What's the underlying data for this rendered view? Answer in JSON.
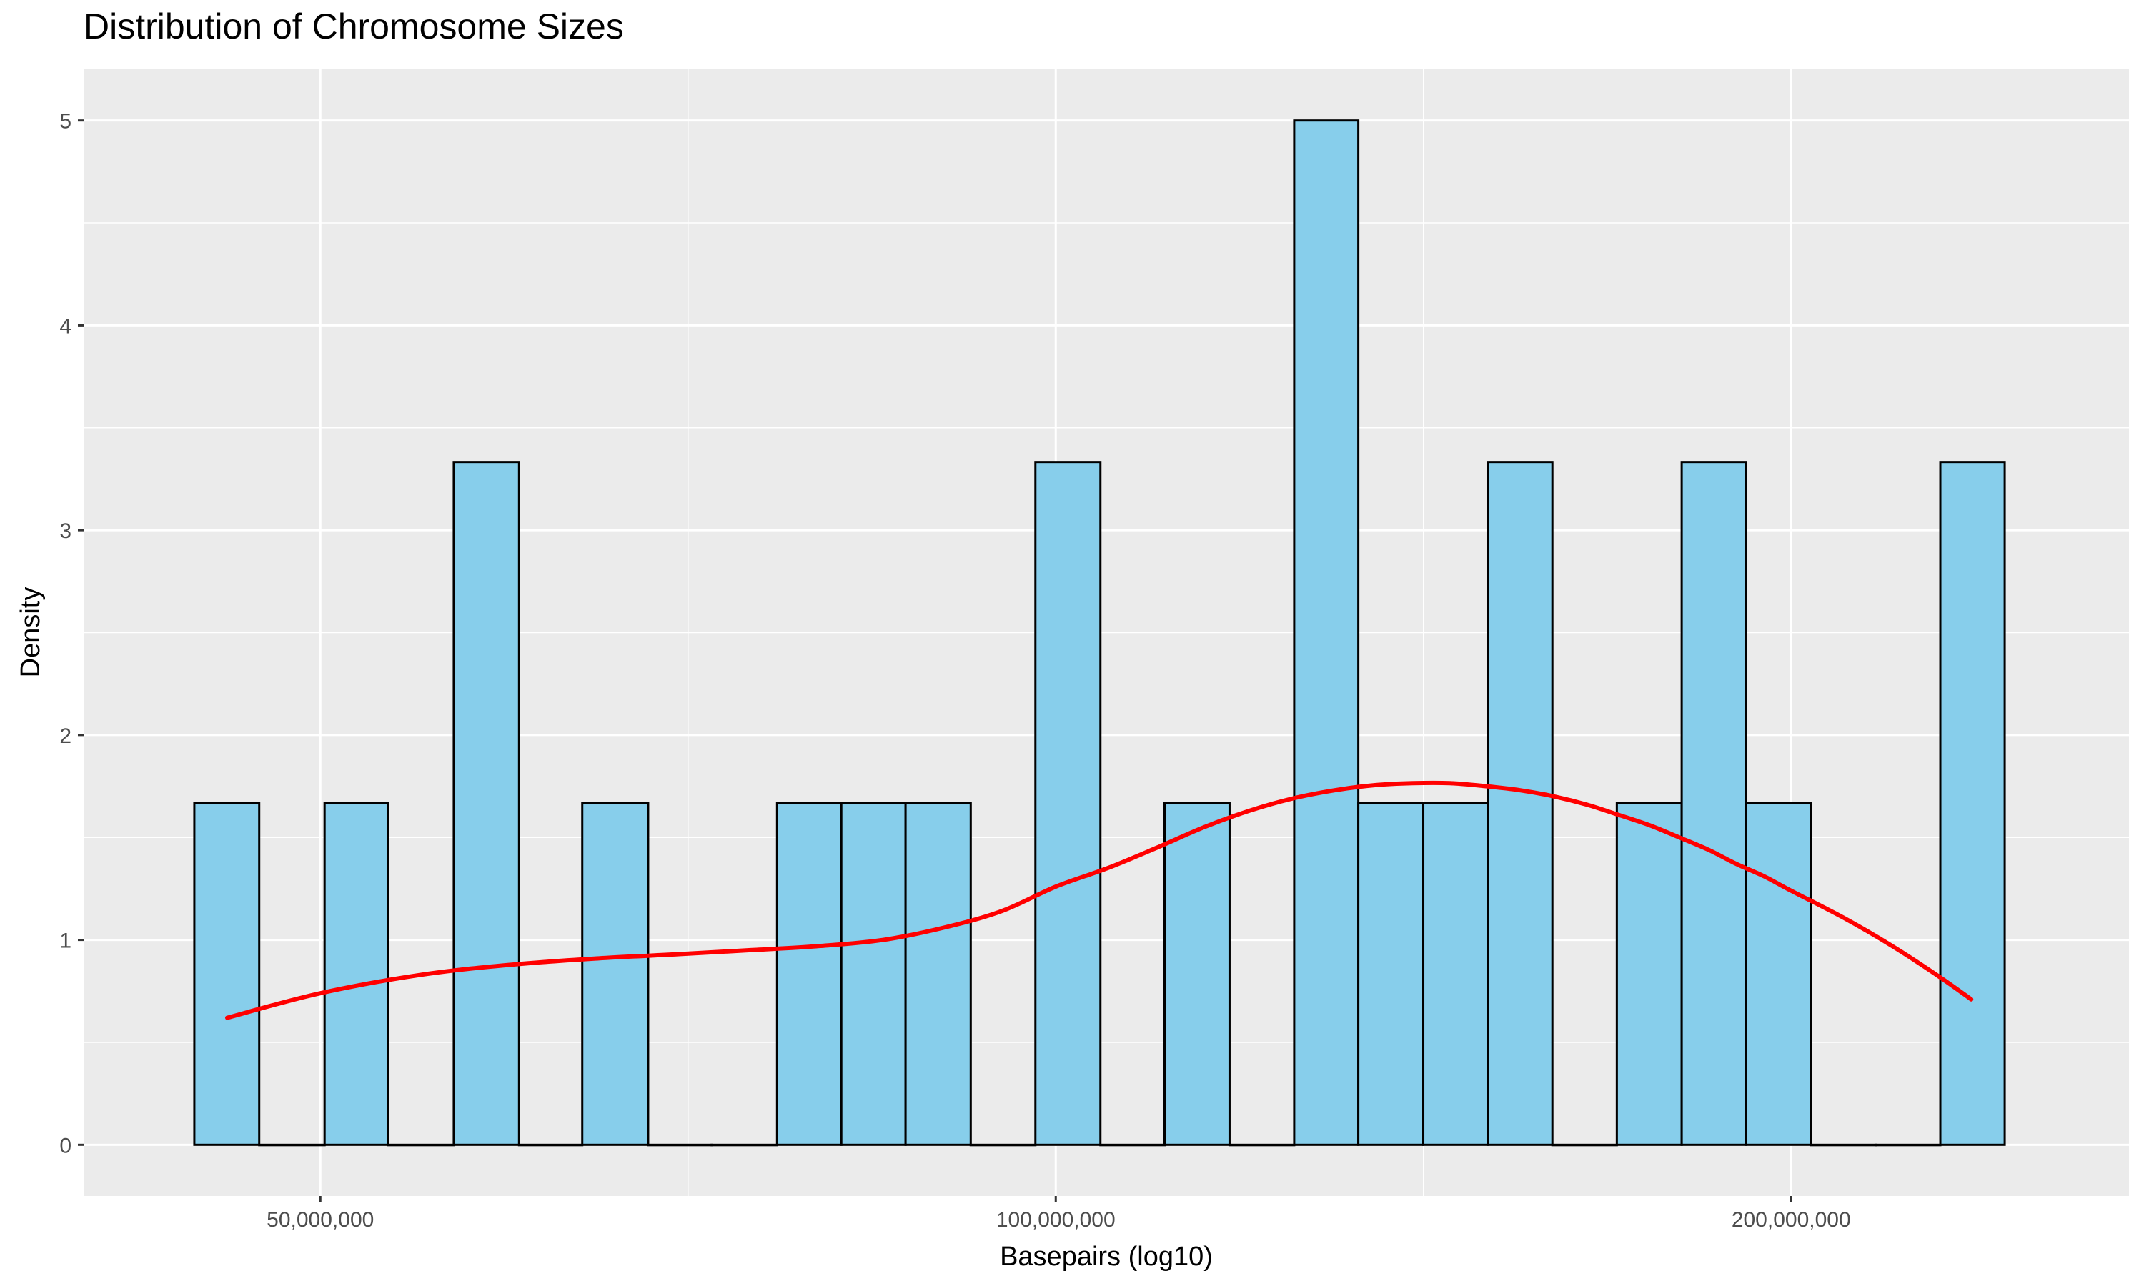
{
  "chart_data": {
    "type": "bar",
    "title": "Distribution of Chromosome Sizes",
    "xlabel": "Basepairs (log10)",
    "ylabel": "Density",
    "x_scale": "log10",
    "xlim": [
      40000000,
      275000000
    ],
    "ylim": [
      -0.25,
      5.25
    ],
    "x_ticks": [
      {
        "value": 50000000,
        "label": "50,000,000"
      },
      {
        "value": 100000000,
        "label": "100,000,000"
      },
      {
        "value": 200000000,
        "label": "200,000,000"
      }
    ],
    "y_ticks": [
      {
        "value": 0,
        "label": "0"
      },
      {
        "value": 1,
        "label": "1"
      },
      {
        "value": 2,
        "label": "2"
      },
      {
        "value": 3,
        "label": "3"
      },
      {
        "value": 4,
        "label": "4"
      },
      {
        "value": 5,
        "label": "5"
      }
    ],
    "grid": true,
    "bins": [
      {
        "x0": 44400000,
        "x1": 47200000,
        "density": 1.667
      },
      {
        "x0": 47200000,
        "x1": 50200000,
        "density": 0
      },
      {
        "x0": 50200000,
        "x1": 53300000,
        "density": 1.667
      },
      {
        "x0": 53300000,
        "x1": 56700000,
        "density": 0
      },
      {
        "x0": 56700000,
        "x1": 60300000,
        "density": 3.333
      },
      {
        "x0": 60300000,
        "x1": 64000000,
        "density": 0
      },
      {
        "x0": 64000000,
        "x1": 68100000,
        "density": 1.667
      },
      {
        "x0": 68100000,
        "x1": 72300000,
        "density": 0
      },
      {
        "x0": 72300000,
        "x1": 76900000,
        "density": 0
      },
      {
        "x0": 76900000,
        "x1": 81700000,
        "density": 1.667
      },
      {
        "x0": 81700000,
        "x1": 86800000,
        "density": 1.667
      },
      {
        "x0": 86800000,
        "x1": 92300000,
        "density": 1.667
      },
      {
        "x0": 92300000,
        "x1": 98100000,
        "density": 0
      },
      {
        "x0": 98100000,
        "x1": 104300000,
        "density": 3.333
      },
      {
        "x0": 104300000,
        "x1": 110800000,
        "density": 0
      },
      {
        "x0": 110800000,
        "x1": 117800000,
        "density": 1.667
      },
      {
        "x0": 117800000,
        "x1": 125200000,
        "density": 0
      },
      {
        "x0": 125200000,
        "x1": 133000000,
        "density": 5.0
      },
      {
        "x0": 133000000,
        "x1": 141400000,
        "density": 1.667
      },
      {
        "x0": 141400000,
        "x1": 150300000,
        "density": 1.667
      },
      {
        "x0": 150300000,
        "x1": 159700000,
        "density": 3.333
      },
      {
        "x0": 159700000,
        "x1": 169700000,
        "density": 0
      },
      {
        "x0": 169700000,
        "x1": 180400000,
        "density": 1.667
      },
      {
        "x0": 180400000,
        "x1": 191700000,
        "density": 3.333
      },
      {
        "x0": 191700000,
        "x1": 203800000,
        "density": 1.667
      },
      {
        "x0": 203800000,
        "x1": 216600000,
        "density": 0
      },
      {
        "x0": 216600000,
        "x1": 230200000,
        "density": 0
      },
      {
        "x0": 230200000,
        "x1": 244600000,
        "density": 3.333
      }
    ],
    "density_curve": {
      "x": [
        45800000,
        50000000,
        55000000,
        60000000,
        65000000,
        70000000,
        75000000,
        80000000,
        85000000,
        90000000,
        95000000,
        100000000,
        105000000,
        110000000,
        115000000,
        120000000,
        125000000,
        130000000,
        135000000,
        140000000,
        145000000,
        150000000,
        155000000,
        160000000,
        165000000,
        170000000,
        175000000,
        180000000,
        185000000,
        190000000,
        195000000,
        200000000,
        210000000,
        220000000,
        230000000,
        237000000
      ],
      "y": [
        0.62,
        0.74,
        0.83,
        0.88,
        0.91,
        0.93,
        0.95,
        0.97,
        1.0,
        1.06,
        1.14,
        1.26,
        1.35,
        1.45,
        1.55,
        1.63,
        1.69,
        1.73,
        1.755,
        1.765,
        1.765,
        1.75,
        1.73,
        1.7,
        1.66,
        1.61,
        1.56,
        1.5,
        1.44,
        1.37,
        1.31,
        1.24,
        1.11,
        0.97,
        0.82,
        0.71
      ]
    },
    "colors": {
      "panel": "#ebebeb",
      "grid": "#ffffff",
      "bar_fill": "#87ceeb",
      "bar_stroke": "#000000",
      "curve": "#ff0000"
    }
  }
}
